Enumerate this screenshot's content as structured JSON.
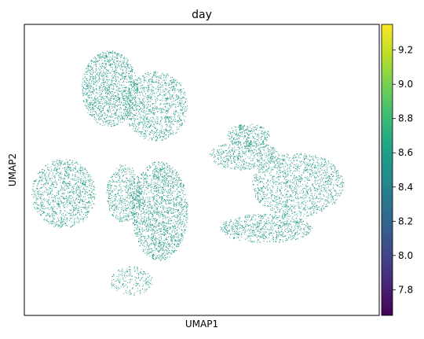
{
  "chart_data": {
    "type": "scatter",
    "title": "day",
    "xlabel": "UMAP1",
    "ylabel": "UMAP2",
    "x_ticks_visible": false,
    "y_ticks_visible": false,
    "grid": false,
    "point_color": "#2a9d8c",
    "colorbar": {
      "cmap": "viridis",
      "range": [
        7.65,
        9.35
      ],
      "ticks": [
        "7.8",
        "8.0",
        "8.2",
        "8.4",
        "8.6",
        "8.8",
        "9.0",
        "9.2"
      ],
      "tick_values": [
        7.8,
        8.0,
        8.2,
        8.4,
        8.6,
        8.8,
        9.0,
        9.2
      ],
      "colors": [
        "#440154",
        "#482475",
        "#414487",
        "#355f8d",
        "#2a788e",
        "#21918c",
        "#22a884",
        "#44bf70",
        "#7ad151",
        "#bddf26",
        "#fde725"
      ]
    },
    "point_value": 8.55,
    "xlim": [
      0,
      100
    ],
    "ylim": [
      0,
      100
    ],
    "clusters": [
      {
        "name": "upper-left-lobe",
        "cx": 24,
        "cy": 78,
        "rx": 8,
        "ry": 13,
        "n": 1300
      },
      {
        "name": "upper-center-lobe",
        "cx": 37,
        "cy": 72,
        "rx": 9,
        "ry": 12,
        "n": 1100
      },
      {
        "name": "left-wing",
        "cx": 11,
        "cy": 42,
        "rx": 9,
        "ry": 12,
        "n": 1100
      },
      {
        "name": "center-stem",
        "cx": 38,
        "cy": 36,
        "rx": 8,
        "ry": 17,
        "n": 1700
      },
      {
        "name": "center-left-strip",
        "cx": 28,
        "cy": 42,
        "rx": 5,
        "ry": 10,
        "n": 500
      },
      {
        "name": "mid-right-band",
        "cx": 62,
        "cy": 55,
        "rx": 10,
        "ry": 5,
        "n": 500
      },
      {
        "name": "right-wing",
        "cx": 77,
        "cy": 45,
        "rx": 13,
        "ry": 11,
        "n": 1300
      },
      {
        "name": "lower-right-band",
        "cx": 68,
        "cy": 30,
        "rx": 13,
        "ry": 5,
        "n": 700
      },
      {
        "name": "top-right-arm",
        "cx": 63,
        "cy": 62,
        "rx": 6,
        "ry": 4,
        "n": 300
      },
      {
        "name": "bottom-tail",
        "cx": 30,
        "cy": 12,
        "rx": 6,
        "ry": 5,
        "n": 200
      }
    ]
  }
}
